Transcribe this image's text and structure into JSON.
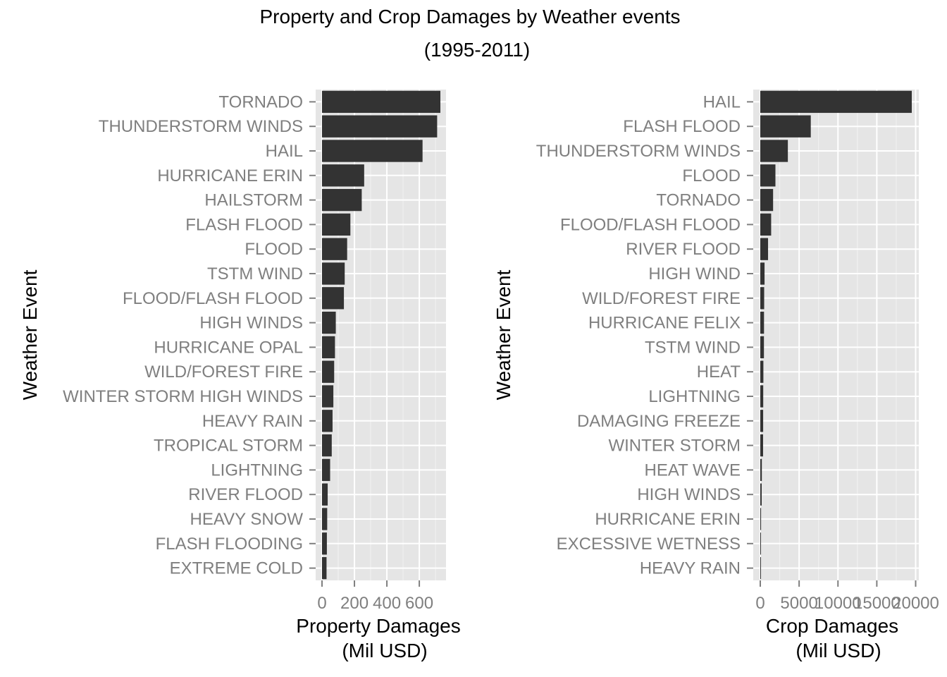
{
  "figure": {
    "title_line1": "Property and Crop Damages by Weather events",
    "title_line2": "(1995-2011)"
  },
  "colors": {
    "panel_background": "#e5e5e5",
    "grid_major": "#ffffff",
    "grid_minor": "#f2f2f2",
    "bar_fill": "#333333",
    "tick_label": "#7f7f7f",
    "tick_mark": "#7f7f7f",
    "text": "#000000"
  },
  "chart_data": [
    {
      "type": "bar",
      "orientation": "horizontal",
      "ylabel": "Weather Event",
      "xlabel_line1": "Property Damages",
      "xlabel_line2": "(Mil USD)",
      "xlim": [
        0,
        730
      ],
      "xticks": [
        0,
        200,
        400,
        600
      ],
      "xtick_labels": [
        "0",
        "200",
        "400",
        "600"
      ],
      "grid": true,
      "categories": [
        "TORNADO",
        "THUNDERSTORM WINDS",
        "HAIL",
        "HURRICANE ERIN",
        "HAILSTORM",
        "FLASH FLOOD",
        "FLOOD",
        "TSTM WIND",
        "FLOOD/FLASH FLOOD",
        "HIGH WINDS",
        "HURRICANE OPAL",
        "WILD/FOREST FIRE",
        "WINTER STORM HIGH WINDS",
        "HEAVY RAIN",
        "TROPICAL STORM",
        "LIGHTNING",
        "RIVER FLOOD",
        "HEAVY SNOW",
        "FLASH FLOODING",
        "EXTREME COLD"
      ],
      "values": [
        730,
        710,
        620,
        260,
        245,
        175,
        155,
        140,
        135,
        85,
        80,
        75,
        70,
        65,
        60,
        50,
        35,
        32,
        30,
        28
      ]
    },
    {
      "type": "bar",
      "orientation": "horizontal",
      "ylabel": "Weather Event",
      "xlabel_line1": "Crop Damages",
      "xlabel_line2": "(Mil USD)",
      "xlim": [
        0,
        19500
      ],
      "xticks": [
        0,
        5000,
        10000,
        15000,
        20000
      ],
      "xtick_labels": [
        "0",
        "5000",
        "10000",
        "15000",
        "20000"
      ],
      "grid": true,
      "categories": [
        "HAIL",
        "FLASH FLOOD",
        "THUNDERSTORM WINDS",
        "FLOOD",
        "TORNADO",
        "FLOOD/FLASH FLOOD",
        "RIVER FLOOD",
        "HIGH WIND",
        "WILD/FOREST FIRE",
        "HURRICANE FELIX",
        "TSTM WIND",
        "HEAT",
        "LIGHTNING",
        "DAMAGING FREEZE",
        "WINTER STORM",
        "HEAT WAVE",
        "HIGH WINDS",
        "HURRICANE ERIN",
        "EXCESSIVE WETNESS",
        "HEAVY RAIN"
      ],
      "values": [
        19500,
        6500,
        3550,
        1950,
        1650,
        1400,
        1000,
        550,
        500,
        480,
        470,
        400,
        380,
        370,
        360,
        200,
        180,
        100,
        90,
        80
      ]
    }
  ]
}
